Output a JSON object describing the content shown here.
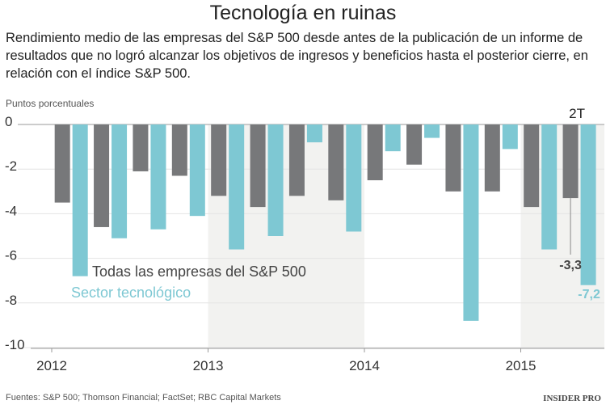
{
  "title": "Tecnología en ruinas",
  "subtitle": "Rendimiento medio de las empresas del S&P 500 desde antes de la publicación de un informe de resultados que no logró alcanzar los objetivos de ingresos y beneficios hasta el posterior cierre, en relación con el índice S&P 500.",
  "source": "Fuentes: S&P 500; Thomson Financial; FactSet; RBC Capital Markets",
  "logo": "INSIDER PRO",
  "chart_data": {
    "type": "bar",
    "ylabel": "Puntos porcentuales",
    "ylim": [
      -10,
      0
    ],
    "yticks": [
      0,
      -2,
      -4,
      -6,
      -8,
      -10
    ],
    "ytick_labels": [
      "0",
      "-2",
      "-4",
      "-6",
      "-8",
      "-10"
    ],
    "xtick_labels": [
      "2012",
      "2013",
      "2014",
      "2015"
    ],
    "categories": [
      "2012 T1",
      "2012 T2",
      "2012 T3",
      "2012 T4",
      "2013 T1",
      "2013 T2",
      "2013 T3",
      "2013 T4",
      "2014 T1",
      "2014 T2",
      "2014 T3",
      "2014 T4",
      "2015 T1",
      "2015 T2"
    ],
    "grid": true,
    "shaded_years": [
      "2013",
      "2015"
    ],
    "series": [
      {
        "name": "Todas las empresas del S&P 500",
        "color": "#77787a",
        "values": [
          -3.5,
          -4.6,
          -2.1,
          -2.3,
          -3.2,
          -3.7,
          -3.2,
          -3.4,
          -2.5,
          -1.8,
          -3.0,
          -3.0,
          -3.7,
          -3.3
        ]
      },
      {
        "name": "Sector tecnológico",
        "color": "#7ec8d3",
        "values": [
          -6.8,
          -5.1,
          -4.7,
          -4.1,
          -5.6,
          -5.0,
          -0.8,
          -4.8,
          -1.2,
          -0.6,
          -8.8,
          -1.1,
          -5.6,
          -7.2
        ]
      }
    ],
    "annotations": {
      "quarter_label": "2T",
      "all_value": "-3,3",
      "tech_value": "-7,2"
    }
  }
}
